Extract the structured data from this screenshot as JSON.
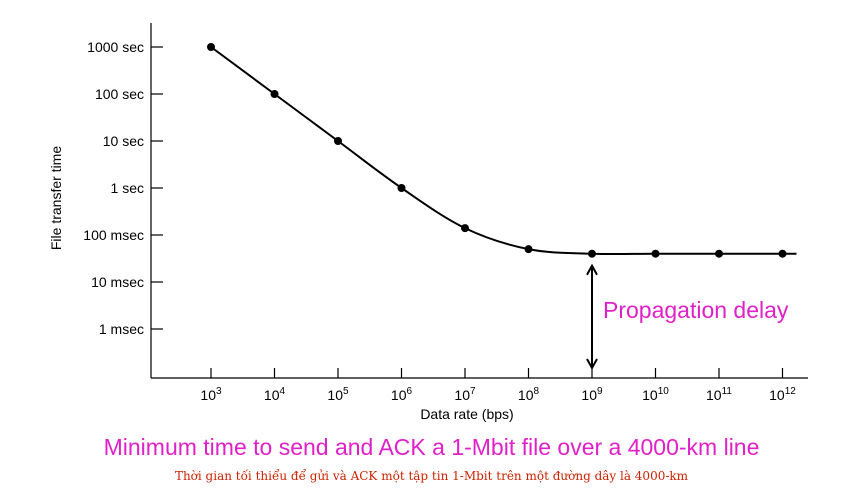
{
  "chart_data": {
    "type": "line",
    "xlabel": "Data rate (bps)",
    "ylabel": "File transfer time",
    "x_scale": "log",
    "y_scale": "log",
    "x_tick_labels": [
      {
        "base": "10",
        "exp": "3"
      },
      {
        "base": "10",
        "exp": "4"
      },
      {
        "base": "10",
        "exp": "5"
      },
      {
        "base": "10",
        "exp": "6"
      },
      {
        "base": "10",
        "exp": "7"
      },
      {
        "base": "10",
        "exp": "8"
      },
      {
        "base": "10",
        "exp": "9"
      },
      {
        "base": "10",
        "exp": "10"
      },
      {
        "base": "10",
        "exp": "11"
      },
      {
        "base": "10",
        "exp": "12"
      }
    ],
    "y_tick_labels": [
      "1000 sec",
      "100 sec",
      "10 sec",
      "1 sec",
      "100 msec",
      "10 msec",
      "1 msec"
    ],
    "x": [
      1000.0,
      10000.0,
      100000.0,
      1000000.0,
      10000000.0,
      100000000.0,
      1000000000.0,
      10000000000.0,
      100000000000.0,
      1000000000000.0
    ],
    "y": [
      1000,
      100,
      10,
      1,
      0.14,
      0.05,
      0.04,
      0.04,
      0.04,
      0.04
    ],
    "grid": false,
    "annotation": "Propagation delay",
    "color": "#000000",
    "annotation_color": "#e020c8"
  },
  "caption": "Minimum time to send and ACK a 1-Mbit file over a 4000-km line",
  "caption_vi": "Thời gian tối thiểu để gửi và ACK một tập tin 1-Mbit trên một đường dây là 4000-km",
  "caption_color": "#e020c8",
  "caption_vi_color": "#cc2200"
}
